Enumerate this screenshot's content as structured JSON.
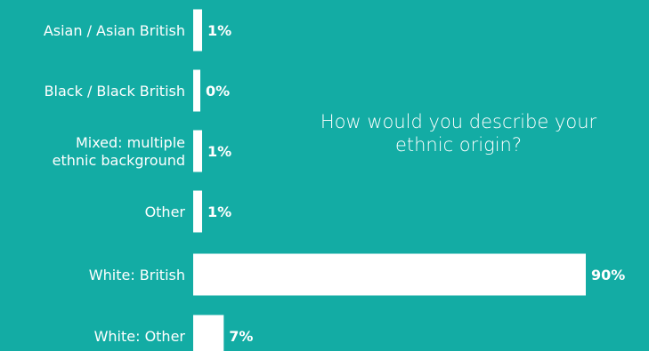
{
  "chart_data": {
    "type": "bar",
    "orientation": "horizontal",
    "title": "How would you describe your ethnic origin?",
    "categories": [
      "Asian / Asian British",
      "Black / Black British",
      "Mixed: multiple ethnic background",
      "Other",
      "White: British",
      "White: Other"
    ],
    "category_lines": [
      [
        "Asian / Asian British"
      ],
      [
        "Black / Black British"
      ],
      [
        "Mixed: multiple",
        "ethnic background"
      ],
      [
        "Other"
      ],
      [
        "White: British"
      ],
      [
        "White: Other"
      ]
    ],
    "values": [
      1,
      0,
      1,
      1,
      90,
      7
    ],
    "value_labels": [
      "1%",
      "0%",
      "1%",
      "1%",
      "90%",
      "7%"
    ],
    "xlim": [
      0,
      100
    ],
    "grid": false,
    "legend": "none",
    "colors": {
      "background": "#13aca4",
      "bar": "#ffffff",
      "text": "#ffffff"
    }
  }
}
